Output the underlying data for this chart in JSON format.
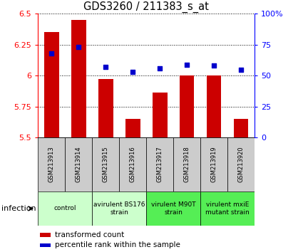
{
  "title": "GDS3260 / 211383_s_at",
  "samples": [
    "GSM213913",
    "GSM213914",
    "GSM213915",
    "GSM213916",
    "GSM213917",
    "GSM213918",
    "GSM213919",
    "GSM213920"
  ],
  "transformed_counts": [
    6.35,
    6.45,
    5.97,
    5.65,
    5.86,
    6.0,
    6.0,
    5.65
  ],
  "percentile_ranks": [
    68,
    73,
    57,
    53,
    56,
    59,
    58,
    55
  ],
  "ylim_left": [
    5.5,
    6.5
  ],
  "ylim_right": [
    0,
    100
  ],
  "yticks_left": [
    5.5,
    5.75,
    6.0,
    6.25,
    6.5
  ],
  "yticks_right": [
    0,
    25,
    50,
    75,
    100
  ],
  "ytick_labels_left": [
    "5.5",
    "5.75",
    "6",
    "6.25",
    "6.5"
  ],
  "ytick_labels_right": [
    "0",
    "25",
    "50",
    "75",
    "100%"
  ],
  "bar_color": "#cc0000",
  "dot_color": "#0000cc",
  "bar_width": 0.55,
  "sample_bg": "#cccccc",
  "group_info": [
    {
      "start": 0,
      "end": 1,
      "label": "control",
      "color": "#ccffcc"
    },
    {
      "start": 2,
      "end": 3,
      "label": "avirulent BS176\nstrain",
      "color": "#ccffcc"
    },
    {
      "start": 4,
      "end": 5,
      "label": "virulent M90T\nstrain",
      "color": "#55ee55"
    },
    {
      "start": 6,
      "end": 7,
      "label": "virulent mxiE\nmutant strain",
      "color": "#55ee55"
    }
  ],
  "infection_label": "infection",
  "legend_bar_label": "transformed count",
  "legend_dot_label": "percentile rank within the sample"
}
